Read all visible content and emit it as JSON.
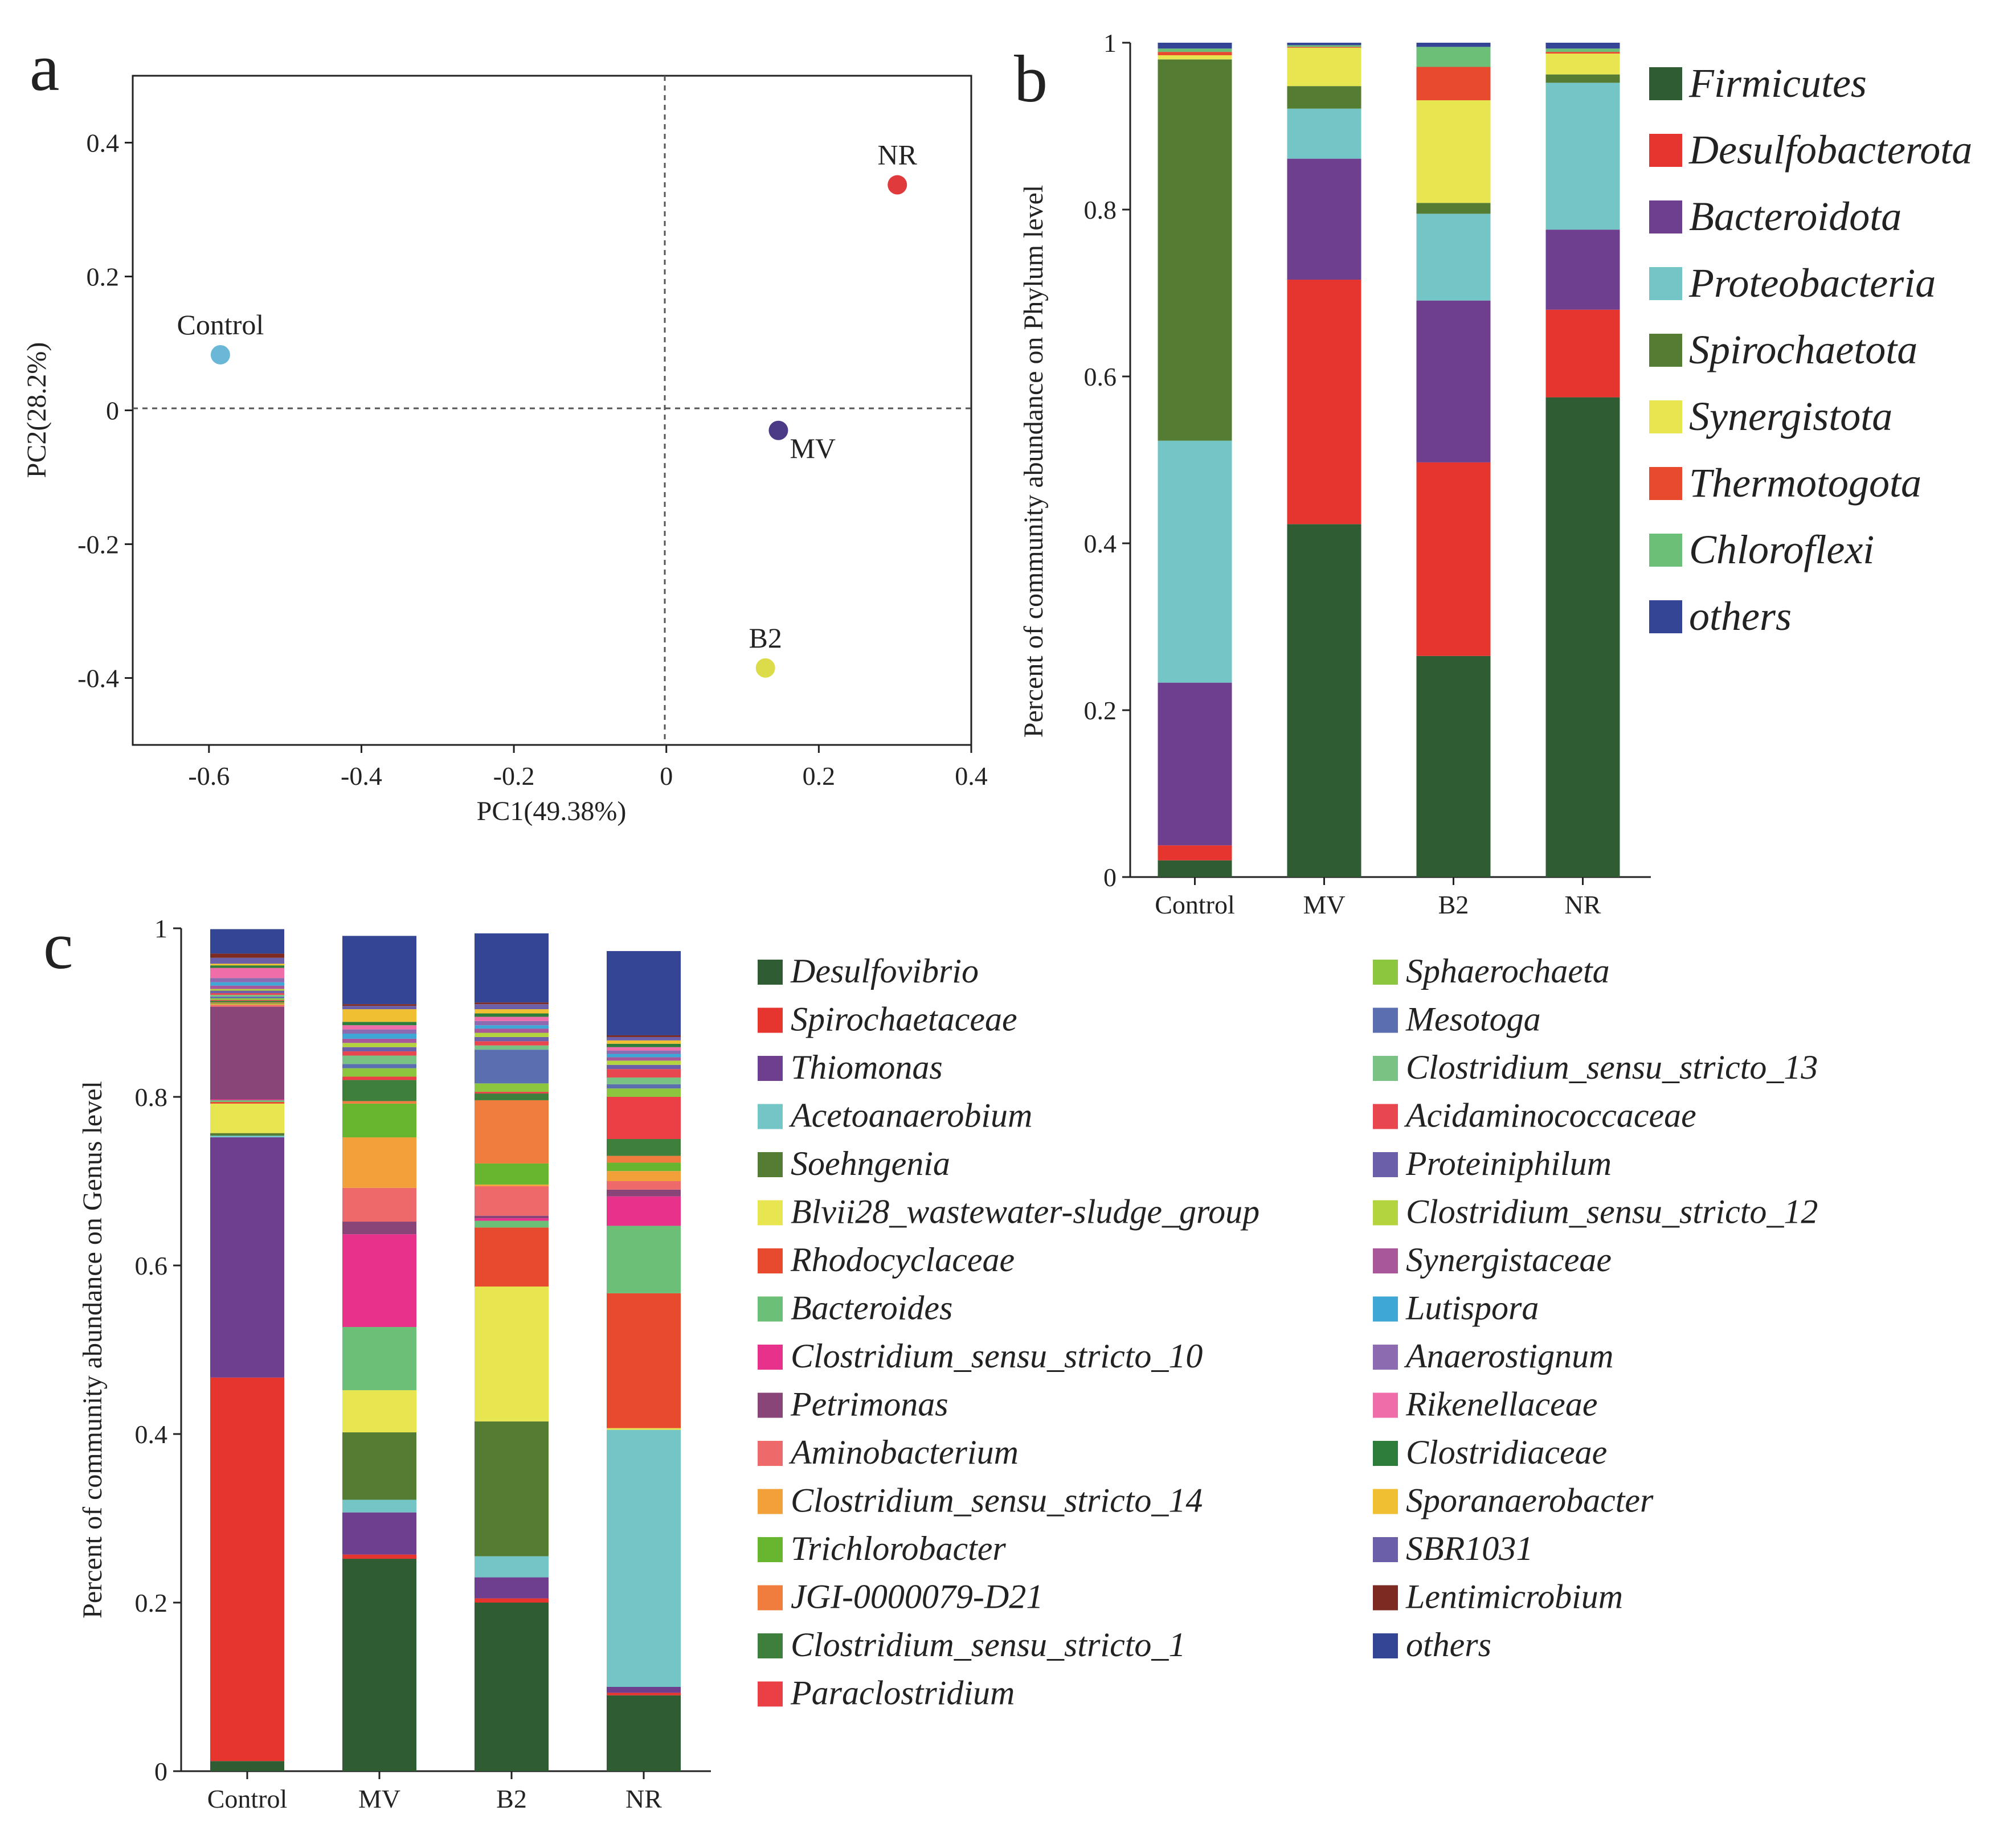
{
  "panel_labels": {
    "a": "a",
    "b": "b",
    "c": "c"
  },
  "chart_data": [
    {
      "type": "scatter",
      "panel": "a",
      "xlabel": "PC1(49.38%)",
      "ylabel": "PC2(28.2%)",
      "xlim": [
        -0.7,
        0.4
      ],
      "ylim": [
        -0.5,
        0.5
      ],
      "xticks": [
        {
          "value": -0.6,
          "label": "-0.6"
        },
        {
          "value": -0.4,
          "label": "-0.4"
        },
        {
          "value": -0.2,
          "label": "-0.2"
        },
        {
          "value": 0,
          "label": "0"
        },
        {
          "value": 0.2,
          "label": "0.2"
        },
        {
          "value": 0.4,
          "label": "0.4"
        }
      ],
      "yticks": [
        {
          "value": 0.4,
          "label": "0.4"
        },
        {
          "value": 0.2,
          "label": "0.2"
        },
        {
          "value": 0,
          "label": "0"
        },
        {
          "value": -0.2,
          "label": "-0.2"
        },
        {
          "value": -0.4,
          "label": "-0.4"
        }
      ],
      "points": [
        {
          "name": "Control",
          "x": -0.585,
          "y": 0.083,
          "color": "#6ab7d8",
          "label_pos": "above"
        },
        {
          "name": "MV",
          "x": 0.147,
          "y": -0.03,
          "color": "#4b3a86",
          "label_pos": "right-below"
        },
        {
          "name": "B2",
          "x": 0.13,
          "y": -0.385,
          "color": "#dcdc4a",
          "label_pos": "above"
        },
        {
          "name": "NR",
          "x": 0.303,
          "y": 0.337,
          "color": "#e03a3c",
          "label_pos": "above"
        }
      ]
    },
    {
      "type": "bar",
      "stacked": true,
      "panel": "b",
      "ylabel": "Percent of community abundance on Phylum level",
      "ylim": [
        0,
        1
      ],
      "yticks": [
        {
          "value": 0,
          "label": "0"
        },
        {
          "value": 0.2,
          "label": "0.2"
        },
        {
          "value": 0.4,
          "label": "0.4"
        },
        {
          "value": 0.6,
          "label": "0.6"
        },
        {
          "value": 0.8,
          "label": "0.8"
        },
        {
          "value": 1,
          "label": "1"
        }
      ],
      "categories": [
        "Control",
        "MV",
        "B2",
        "NR"
      ],
      "series": [
        {
          "name": "Firmicutes",
          "color": "#2f5c33",
          "values": [
            0.02,
            0.423,
            0.265,
            0.575
          ]
        },
        {
          "name": "Desulfobacterota",
          "color": "#e5352e",
          "values": [
            0.018,
            0.293,
            0.232,
            0.105
          ]
        },
        {
          "name": "Bacteroidota",
          "color": "#6f3f8f",
          "values": [
            0.195,
            0.145,
            0.194,
            0.096
          ]
        },
        {
          "name": "Proteobacteria",
          "color": "#74c5c6",
          "values": [
            0.29,
            0.06,
            0.104,
            0.176
          ]
        },
        {
          "name": "Spirochaetota",
          "color": "#547c33",
          "values": [
            0.457,
            0.027,
            0.013,
            0.01
          ]
        },
        {
          "name": "Synergistota",
          "color": "#e8e650",
          "values": [
            0.005,
            0.046,
            0.123,
            0.025
          ]
        },
        {
          "name": "Thermotogota",
          "color": "#e84a2e",
          "values": [
            0.004,
            0.001,
            0.04,
            0.002
          ]
        },
        {
          "name": "Chloroflexi",
          "color": "#6cbf76",
          "values": [
            0.004,
            0.002,
            0.024,
            0.004
          ]
        },
        {
          "name": "others",
          "color": "#344596",
          "values": [
            0.007,
            0.003,
            0.005,
            0.007
          ]
        }
      ]
    },
    {
      "type": "bar",
      "stacked": true,
      "panel": "c",
      "ylabel": "Percent of community abundance on Genus level",
      "ylim": [
        0,
        1
      ],
      "yticks": [
        {
          "value": 0,
          "label": "0"
        },
        {
          "value": 0.2,
          "label": "0.2"
        },
        {
          "value": 0.4,
          "label": "0.4"
        },
        {
          "value": 0.6,
          "label": "0.6"
        },
        {
          "value": 0.8,
          "label": "0.8"
        },
        {
          "value": 1,
          "label": "1"
        }
      ],
      "categories": [
        "Control",
        "MV",
        "B2",
        "NR"
      ],
      "series": [
        {
          "name": "Desulfovibrio",
          "color": "#2f5c33",
          "values": [
            0.012,
            0.252,
            0.2,
            0.09
          ]
        },
        {
          "name": "Spirochaetaceae",
          "color": "#e5352e",
          "values": [
            0.455,
            0.005,
            0.005,
            0.003
          ]
        },
        {
          "name": "Thiomonas",
          "color": "#6f3f8f",
          "values": [
            0.285,
            0.05,
            0.025,
            0.007
          ]
        },
        {
          "name": "Acetoanaerobium",
          "color": "#74c5c6",
          "values": [
            0.002,
            0.015,
            0.025,
            0.305
          ]
        },
        {
          "name": "Soehngenia",
          "color": "#547c33",
          "values": [
            0.003,
            0.08,
            0.16,
            0.0
          ]
        },
        {
          "name": "Blvii28_wastewater-sludge_group",
          "color": "#e8e650",
          "values": [
            0.035,
            0.05,
            0.16,
            0.002
          ]
        },
        {
          "name": "Rhodocyclaceae",
          "color": "#e84a2e",
          "values": [
            0.002,
            0.0,
            0.07,
            0.16
          ]
        },
        {
          "name": "Bacteroides",
          "color": "#6cbf76",
          "values": [
            0.002,
            0.075,
            0.008,
            0.08
          ]
        },
        {
          "name": "Clostridium_sensu_stricto_10",
          "color": "#e8318a",
          "values": [
            0.001,
            0.11,
            0.003,
            0.035
          ]
        },
        {
          "name": "Petrimonas",
          "color": "#8a4578",
          "values": [
            0.11,
            0.015,
            0.003,
            0.008
          ]
        },
        {
          "name": "Aminobacterium",
          "color": "#ee6a6a",
          "values": [
            0.002,
            0.04,
            0.035,
            0.01
          ]
        },
        {
          "name": "Clostridium_sensu_stricto_14",
          "color": "#f2a13a",
          "values": [
            0.001,
            0.06,
            0.002,
            0.012
          ]
        },
        {
          "name": "Trichlorobacter",
          "color": "#68b530",
          "values": [
            0.001,
            0.04,
            0.025,
            0.01
          ]
        },
        {
          "name": "JGI-0000079-D21",
          "color": "#f07c3e",
          "values": [
            0.001,
            0.003,
            0.075,
            0.008
          ]
        },
        {
          "name": "Clostridium_sensu_stricto_1",
          "color": "#3f7f3c",
          "values": [
            0.002,
            0.025,
            0.008,
            0.02
          ]
        },
        {
          "name": "Paraclostridium",
          "color": "#ea3f44",
          "values": [
            0.001,
            0.004,
            0.002,
            0.05
          ]
        },
        {
          "name": "Sphaerochaeta",
          "color": "#8cc63f",
          "values": [
            0.002,
            0.01,
            0.01,
            0.01
          ]
        },
        {
          "name": "Mesotoga",
          "color": "#5b6fb0",
          "values": [
            0.002,
            0.005,
            0.04,
            0.005
          ]
        },
        {
          "name": "Clostridium_sensu_stricto_13",
          "color": "#7ac283",
          "values": [
            0.002,
            0.01,
            0.005,
            0.008
          ]
        },
        {
          "name": "Acidaminococcaceae",
          "color": "#e8474f",
          "values": [
            0.002,
            0.005,
            0.005,
            0.01
          ]
        },
        {
          "name": "Proteiniphilum",
          "color": "#6a5fa8",
          "values": [
            0.003,
            0.005,
            0.005,
            0.005
          ]
        },
        {
          "name": "Clostridium_sensu_stricto_12",
          "color": "#b3d43e",
          "values": [
            0.002,
            0.005,
            0.005,
            0.005
          ]
        },
        {
          "name": "Synergistaceae",
          "color": "#a8579b",
          "values": [
            0.004,
            0.005,
            0.005,
            0.004
          ]
        },
        {
          "name": "Lutispora",
          "color": "#3fa7d6",
          "values": [
            0.004,
            0.006,
            0.004,
            0.004
          ]
        },
        {
          "name": "Anaerostignum",
          "color": "#8d6bb0",
          "values": [
            0.005,
            0.005,
            0.005,
            0.004
          ]
        },
        {
          "name": "Rikenellaceae",
          "color": "#ef6ea9",
          "values": [
            0.012,
            0.005,
            0.005,
            0.004
          ]
        },
        {
          "name": "Clostridiaceae",
          "color": "#2f7d3a",
          "values": [
            0.003,
            0.004,
            0.004,
            0.004
          ]
        },
        {
          "name": "Sporanaerobacter",
          "color": "#f0bf32",
          "values": [
            0.002,
            0.015,
            0.005,
            0.004
          ]
        },
        {
          "name": "SBR1031",
          "color": "#6a5fa8",
          "values": [
            0.007,
            0.004,
            0.006,
            0.004
          ]
        },
        {
          "name": "Lentimicrobium",
          "color": "#7c2a22",
          "values": [
            0.005,
            0.002,
            0.002,
            0.002
          ]
        },
        {
          "name": "others",
          "color": "#344596",
          "values": [
            0.029,
            0.081,
            0.082,
            0.1
          ]
        }
      ]
    }
  ]
}
